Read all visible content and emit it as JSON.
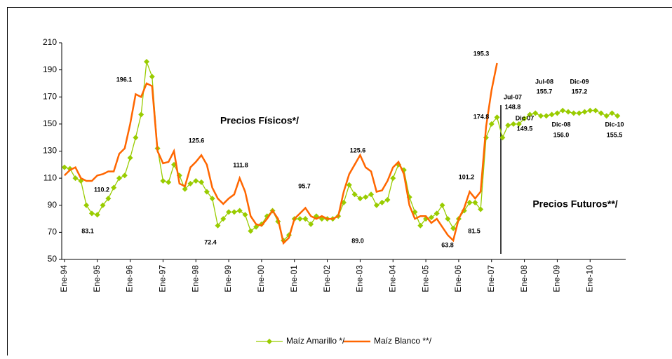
{
  "chart_data": {
    "type": "line",
    "x": [
      0,
      2,
      4,
      6,
      8,
      10,
      12,
      14,
      16,
      18,
      20,
      22,
      24,
      26,
      28,
      30,
      32,
      34,
      36,
      38,
      40,
      42,
      44,
      46,
      48,
      50,
      52,
      54,
      56,
      58,
      60,
      62,
      64,
      66,
      68,
      70,
      72,
      74,
      76,
      78,
      80,
      82,
      84,
      86,
      88,
      90,
      92,
      94,
      96,
      98,
      100,
      102,
      104,
      106,
      108,
      110,
      112,
      114,
      116,
      118,
      120,
      122,
      124,
      126,
      128,
      130,
      132,
      134,
      136,
      138,
      140,
      142,
      144,
      146,
      148,
      150,
      152,
      154,
      156,
      158,
      160,
      162,
      164,
      166,
      168,
      170,
      172,
      174,
      176,
      178,
      180,
      182,
      184,
      186,
      188,
      190,
      192,
      194,
      196,
      198,
      200,
      202
    ],
    "xlim": [
      -1,
      205
    ],
    "xticks": [
      {
        "value": 0,
        "label": "Ene-94"
      },
      {
        "value": 12,
        "label": "Ene-95"
      },
      {
        "value": 24,
        "label": "Ene-96"
      },
      {
        "value": 36,
        "label": "Ene-97"
      },
      {
        "value": 48,
        "label": "Ene-98"
      },
      {
        "value": 60,
        "label": "Ene-99"
      },
      {
        "value": 72,
        "label": "Ene-00"
      },
      {
        "value": 84,
        "label": "Ene-01"
      },
      {
        "value": 96,
        "label": "Ene-02"
      },
      {
        "value": 108,
        "label": "Ene-03"
      },
      {
        "value": 120,
        "label": "Ene-04"
      },
      {
        "value": 132,
        "label": "Ene-05"
      },
      {
        "value": 144,
        "label": "Ene-06"
      },
      {
        "value": 156,
        "label": "Ene-07"
      },
      {
        "value": 168,
        "label": "Ene-08"
      },
      {
        "value": 180,
        "label": "Ene-09"
      },
      {
        "value": 192,
        "label": "Ene-10"
      }
    ],
    "ylim": [
      50,
      210
    ],
    "yticks": [
      50,
      70,
      90,
      110,
      130,
      150,
      170,
      190,
      210
    ],
    "series": [
      {
        "name": "Maíz Amarillo */",
        "color": "#99cc00",
        "values": [
          118,
          117,
          110,
          108,
          90,
          84,
          83,
          90,
          95,
          103,
          110,
          112,
          125,
          140,
          157,
          196,
          185,
          132,
          108,
          107,
          120,
          112,
          102,
          106,
          108,
          107,
          100,
          95,
          75,
          80,
          85,
          85,
          86,
          83,
          71,
          74,
          76,
          82,
          86,
          78,
          64,
          68,
          80,
          80,
          80,
          76,
          82,
          80,
          80,
          80,
          82,
          92,
          105,
          98,
          95,
          96,
          98,
          90,
          92,
          94,
          110,
          120,
          116,
          96,
          85,
          75,
          80,
          81,
          84,
          90,
          80,
          73,
          80,
          86,
          92,
          92,
          87,
          140,
          150,
          155,
          140,
          149,
          150,
          150,
          154,
          157,
          158,
          156,
          156,
          157,
          158,
          160,
          159,
          158,
          158,
          159,
          160,
          160,
          158,
          156,
          158,
          156
        ]
      },
      {
        "name": "Maíz Blanco **/",
        "color": "#ff6600",
        "values": [
          112,
          116,
          118,
          110,
          108,
          108,
          112,
          113,
          115,
          115,
          128,
          132,
          150,
          172,
          170,
          180,
          178,
          130,
          121,
          122,
          130,
          106,
          104,
          118,
          122,
          127,
          120,
          103,
          95,
          91,
          95,
          98,
          110,
          100,
          82,
          76,
          75,
          80,
          86,
          80,
          62,
          66,
          80,
          84,
          88,
          82,
          80,
          82,
          80,
          80,
          82,
          100,
          113,
          120,
          127,
          118,
          115,
          100,
          101,
          108,
          118,
          122,
          113,
          90,
          80,
          82,
          82,
          77,
          80,
          74,
          68,
          64,
          80,
          88,
          100,
          95,
          100,
          148,
          175,
          195,
          null,
          null,
          null,
          null,
          null,
          null,
          null,
          null,
          null,
          null,
          null,
          null,
          null,
          null,
          null,
          null,
          null,
          null,
          null,
          null,
          null,
          null
        ]
      }
    ],
    "annotations": [
      "196.1",
      "110.2",
      "83.1",
      "125.6",
      "72.4",
      "111.8",
      "95.7",
      "125.6",
      "89.0",
      "63.8",
      "101.2",
      "81.5",
      "174.8",
      "195.3",
      "Jul-07",
      "148.8",
      "Dic 07",
      "149.5",
      "Jul-08",
      "155.7",
      "Dic-08",
      "156.0",
      "Dic-09",
      "157.2",
      "Dic-10",
      "155.5",
      "Precios Físicos*/",
      "Precios Futuros**/"
    ],
    "legend": "bottom"
  }
}
